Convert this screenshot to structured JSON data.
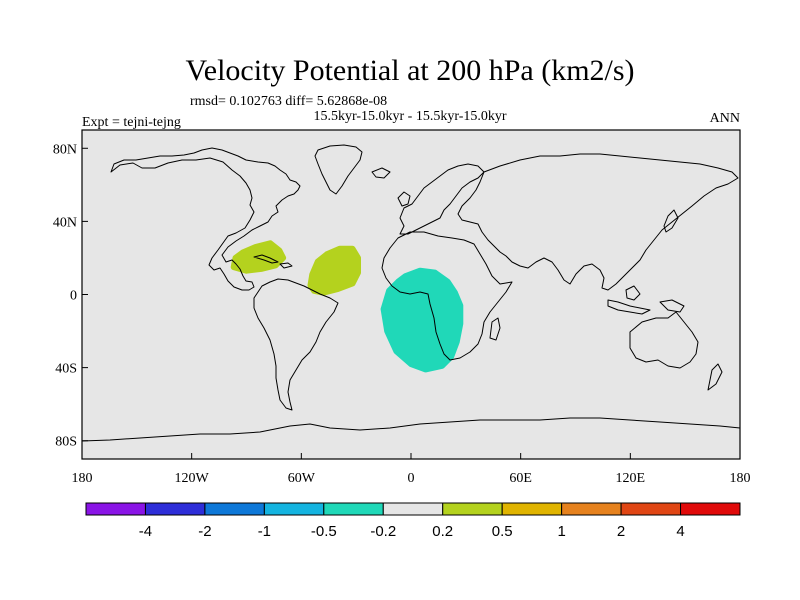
{
  "title": "Velocity Potential at 200 hPa (km2/s)",
  "stats": "rmsd= 0.102763 diff= 5.62868e-08",
  "period": "15.5kyr-15.0kyr - 15.5kyr-15.0kyr",
  "expt": "Expt = tejni-tejng",
  "season": "ANN",
  "map": {
    "lon_range": [
      -180,
      180
    ],
    "lat_range": [
      -90,
      90
    ],
    "background_color": "#e6e6e6",
    "x_ticks": [
      {
        "lon": -180,
        "label": "180"
      },
      {
        "lon": -120,
        "label": "120W"
      },
      {
        "lon": -60,
        "label": "60W"
      },
      {
        "lon": 0,
        "label": "0"
      },
      {
        "lon": 60,
        "label": "60E"
      },
      {
        "lon": 120,
        "label": "120E"
      },
      {
        "lon": 180,
        "label": "180"
      }
    ],
    "y_ticks": [
      {
        "lat": 80,
        "label": "80N"
      },
      {
        "lat": 40,
        "label": "40N"
      },
      {
        "lat": 0,
        "label": "0"
      },
      {
        "lat": -40,
        "label": "40S"
      },
      {
        "lat": -80,
        "label": "80S"
      }
    ],
    "anomalies": [
      {
        "name": "caribbean-positive",
        "color": "#b4d21e",
        "points": [
          [
            -96,
            20
          ],
          [
            -92,
            23
          ],
          [
            -85,
            26
          ],
          [
            -77,
            28
          ],
          [
            -72,
            24
          ],
          [
            -70,
            20
          ],
          [
            -74,
            16
          ],
          [
            -82,
            14
          ],
          [
            -90,
            13
          ],
          [
            -97,
            15
          ]
        ]
      },
      {
        "name": "atlantic-positive",
        "color": "#b4d21e",
        "points": [
          [
            -55,
            5
          ],
          [
            -54,
            11
          ],
          [
            -51,
            18
          ],
          [
            -46,
            22
          ],
          [
            -39,
            25
          ],
          [
            -32,
            25
          ],
          [
            -29,
            20
          ],
          [
            -29,
            12
          ],
          [
            -32,
            6
          ],
          [
            -40,
            3
          ],
          [
            -48,
            1
          ],
          [
            -53,
            2
          ]
        ]
      },
      {
        "name": "southern-africa-negative",
        "color": "#20d8b8",
        "points": [
          [
            -3,
            10
          ],
          [
            5,
            13
          ],
          [
            13,
            12
          ],
          [
            20,
            7
          ],
          [
            24,
            1
          ],
          [
            27,
            -6
          ],
          [
            27,
            -16
          ],
          [
            25,
            -26
          ],
          [
            22,
            -34
          ],
          [
            17,
            -39
          ],
          [
            8,
            -41
          ],
          [
            0,
            -38
          ],
          [
            -8,
            -31
          ],
          [
            -13,
            -20
          ],
          [
            -15,
            -8
          ],
          [
            -12,
            2
          ],
          [
            -7,
            7
          ]
        ]
      }
    ]
  },
  "colorbar": {
    "levels": [
      "-4",
      "-2",
      "-1",
      "-0.5",
      "-0.2",
      "0.2",
      "0.5",
      "1",
      "2",
      "4"
    ],
    "colors": [
      "#8a14e6",
      "#2e2ed8",
      "#0e78d8",
      "#14b4e0",
      "#20d8b8",
      "#e6e6e6",
      "#b4d21e",
      "#e0b400",
      "#e6821e",
      "#e04614",
      "#e00a0a"
    ]
  }
}
